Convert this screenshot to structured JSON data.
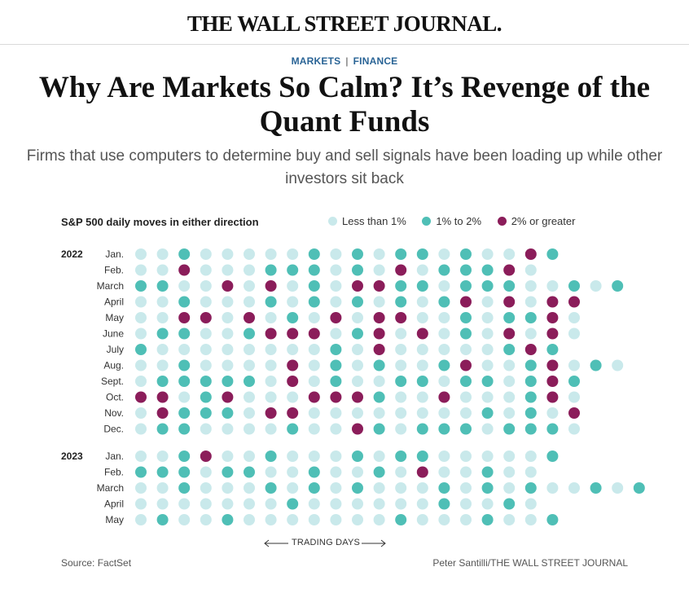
{
  "masthead": {
    "logo": "THE WALL STREET JOURNAL."
  },
  "breadcrumb": {
    "section": "MARKETS",
    "subsection": "FINANCE"
  },
  "article": {
    "headline": "Why Are Markets So Calm? It’s Revenge of the Quant Funds",
    "dek": "Firms that use computers to determine buy and sell signals have been loading up while other investors sit back"
  },
  "colors": {
    "small": "#c9e9eb",
    "medium": "#4fbfb6",
    "large": "#8b1d5a"
  },
  "chart_data": {
    "type": "dot-matrix",
    "title": "S&P 500 daily moves in either direction",
    "legend": [
      {
        "key": "small",
        "label": "Less than 1%"
      },
      {
        "key": "medium",
        "label": "1% to 2%"
      },
      {
        "key": "large",
        "label": "2% or greater"
      }
    ],
    "xlabel": "TRADING DAYS",
    "categories_note": "Each dot is one trading day; 0 = less than 1%, 1 = 1% to 2%, 2 = 2% or greater",
    "years": [
      {
        "year": "2022",
        "months": [
          {
            "label": "Jan.",
            "days": [
              0,
              0,
              1,
              0,
              0,
              0,
              0,
              0,
              1,
              0,
              1,
              0,
              1,
              1,
              0,
              1,
              0,
              0,
              2,
              1
            ]
          },
          {
            "label": "Feb.",
            "days": [
              0,
              0,
              2,
              0,
              0,
              0,
              1,
              1,
              1,
              0,
              1,
              0,
              2,
              0,
              1,
              1,
              1,
              2,
              0
            ]
          },
          {
            "label": "March",
            "days": [
              1,
              1,
              0,
              0,
              2,
              0,
              2,
              0,
              1,
              0,
              2,
              2,
              1,
              1,
              0,
              1,
              1,
              1,
              0,
              0,
              1,
              0,
              1
            ]
          },
          {
            "label": "April",
            "days": [
              0,
              0,
              1,
              0,
              0,
              0,
              1,
              0,
              1,
              0,
              1,
              0,
              1,
              0,
              1,
              2,
              0,
              2,
              0,
              2,
              2
            ]
          },
          {
            "label": "May",
            "days": [
              0,
              0,
              2,
              2,
              0,
              2,
              0,
              1,
              0,
              2,
              0,
              2,
              2,
              0,
              0,
              1,
              0,
              1,
              1,
              2,
              0
            ]
          },
          {
            "label": "June",
            "days": [
              0,
              1,
              1,
              0,
              0,
              1,
              2,
              2,
              2,
              0,
              1,
              2,
              0,
              2,
              0,
              1,
              0,
              2,
              0,
              2,
              0
            ]
          },
          {
            "label": "July",
            "days": [
              1,
              0,
              0,
              0,
              0,
              0,
              0,
              0,
              0,
              1,
              0,
              2,
              0,
              0,
              0,
              0,
              0,
              1,
              2,
              1
            ]
          },
          {
            "label": "Aug.",
            "days": [
              0,
              0,
              1,
              0,
              0,
              0,
              0,
              2,
              0,
              1,
              0,
              1,
              0,
              0,
              1,
              2,
              0,
              0,
              1,
              2,
              0,
              1,
              0
            ]
          },
          {
            "label": "Sept.",
            "days": [
              0,
              1,
              1,
              1,
              1,
              1,
              0,
              2,
              0,
              1,
              0,
              0,
              1,
              1,
              0,
              1,
              1,
              0,
              1,
              2,
              1
            ]
          },
          {
            "label": "Oct.",
            "days": [
              2,
              2,
              0,
              1,
              2,
              0,
              0,
              0,
              2,
              2,
              2,
              1,
              0,
              0,
              2,
              0,
              0,
              0,
              1,
              2,
              0
            ]
          },
          {
            "label": "Nov.",
            "days": [
              0,
              2,
              1,
              1,
              1,
              0,
              2,
              2,
              0,
              0,
              0,
              0,
              0,
              0,
              0,
              0,
              1,
              0,
              1,
              0,
              2
            ]
          },
          {
            "label": "Dec.",
            "days": [
              0,
              1,
              1,
              0,
              0,
              0,
              0,
              1,
              0,
              0,
              2,
              1,
              0,
              1,
              1,
              1,
              0,
              1,
              1,
              1,
              0
            ]
          }
        ]
      },
      {
        "year": "2023",
        "months": [
          {
            "label": "Jan.",
            "days": [
              0,
              0,
              1,
              2,
              0,
              0,
              1,
              0,
              0,
              0,
              1,
              0,
              1,
              1,
              0,
              0,
              0,
              0,
              0,
              1
            ]
          },
          {
            "label": "Feb.",
            "days": [
              1,
              1,
              1,
              0,
              1,
              1,
              0,
              0,
              1,
              0,
              0,
              1,
              0,
              2,
              0,
              0,
              1,
              0,
              0
            ]
          },
          {
            "label": "March",
            "days": [
              0,
              0,
              1,
              0,
              0,
              0,
              1,
              0,
              1,
              0,
              1,
              0,
              0,
              0,
              1,
              0,
              1,
              0,
              1,
              0,
              0,
              1,
              0,
              1
            ]
          },
          {
            "label": "April",
            "days": [
              0,
              0,
              0,
              0,
              0,
              0,
              0,
              1,
              0,
              0,
              0,
              0,
              0,
              0,
              1,
              0,
              0,
              1,
              0
            ]
          },
          {
            "label": "May",
            "days": [
              0,
              1,
              0,
              0,
              1,
              0,
              0,
              0,
              0,
              0,
              0,
              0,
              1,
              0,
              0,
              0,
              1,
              0,
              0,
              1
            ]
          }
        ]
      }
    ]
  },
  "footer": {
    "source": "Source: FactSet",
    "credit": "Peter Santilli/THE WALL STREET JOURNAL"
  }
}
